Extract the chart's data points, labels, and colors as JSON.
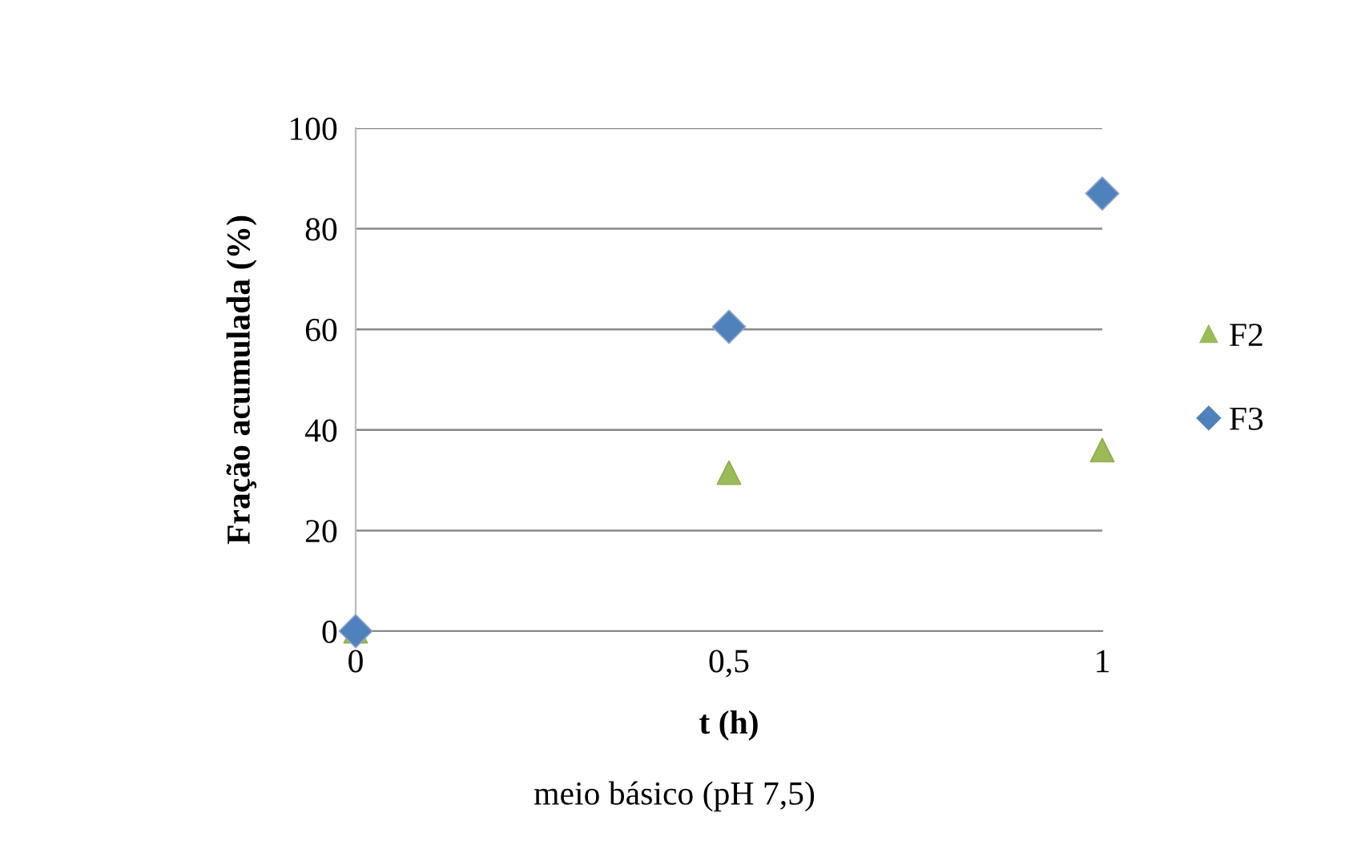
{
  "chart_data": {
    "type": "scatter",
    "xlabel": "t (h)",
    "ylabel": "Fração acumulada (%)",
    "annotations": [
      "meio básico (pH 7,5)"
    ],
    "x": [
      0,
      0.5,
      1
    ],
    "series": [
      {
        "name": "F2",
        "color": "#9bbb59",
        "marker": "triangle",
        "values": [
          0,
          31.5,
          36
        ]
      },
      {
        "name": "F3",
        "color": "#4f81bd",
        "marker": "diamond",
        "values": [
          0,
          60.5,
          87
        ]
      }
    ],
    "xlim": [
      0,
      1
    ],
    "xticks": [
      0,
      {
        "value": 0.5,
        "label": "0,5"
      },
      1
    ],
    "ylim": [
      0,
      100
    ],
    "yticks": [
      0,
      20,
      40,
      60,
      80,
      100
    ],
    "grid": "y",
    "legend": "right"
  }
}
